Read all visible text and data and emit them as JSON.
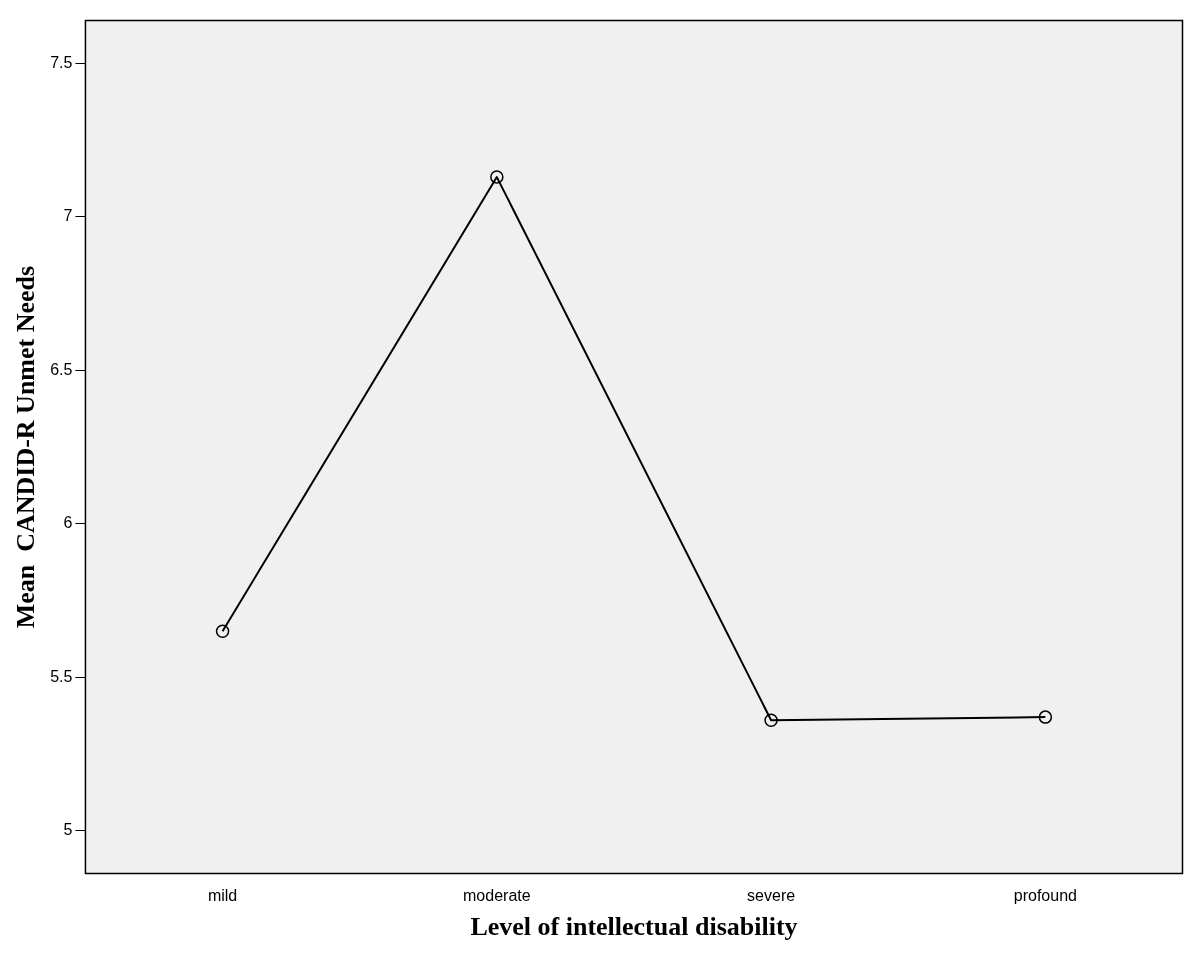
{
  "chart_data": {
    "type": "line",
    "xlabel": "Level of intellectual disability",
    "ylabel": "Mean  CANDID-R Unmet Needs",
    "categories": [
      "mild",
      "moderate",
      "severe",
      "profound"
    ],
    "values": [
      5.65,
      7.13,
      5.36,
      5.37
    ],
    "color": "#000000",
    "marker": "circle",
    "grid": false,
    "ylim": [
      4.86,
      7.64
    ],
    "yticks": [
      5,
      5.5,
      6,
      6.5,
      7,
      7.5
    ]
  }
}
